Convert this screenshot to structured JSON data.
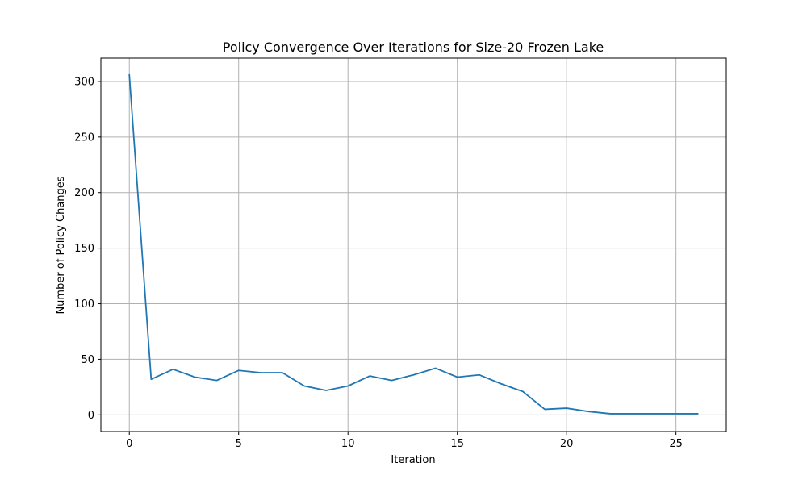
{
  "chart_data": {
    "type": "line",
    "title": "Policy Convergence Over Iterations for Size-20 Frozen Lake",
    "xlabel": "Iteration",
    "ylabel": "Number of Policy Changes",
    "xlim": [
      -1.3,
      27.3
    ],
    "ylim": [
      -15,
      321
    ],
    "xticks": [
      0,
      5,
      10,
      15,
      20,
      25
    ],
    "yticks": [
      0,
      50,
      100,
      150,
      200,
      250,
      300
    ],
    "grid": true,
    "line_color": "#1f77b4",
    "series": [
      {
        "x": [
          0,
          1,
          2,
          3,
          4,
          5,
          6,
          7,
          8,
          9,
          10,
          11,
          12,
          13,
          14,
          15,
          16,
          17,
          18,
          19,
          20,
          21,
          22,
          23,
          24,
          25,
          26
        ],
        "values": [
          306,
          32,
          41,
          34,
          31,
          40,
          38,
          38,
          26,
          22,
          26,
          35,
          31,
          36,
          42,
          34,
          36,
          28,
          21,
          5,
          6,
          3,
          1,
          1,
          1,
          1,
          1
        ]
      }
    ]
  }
}
